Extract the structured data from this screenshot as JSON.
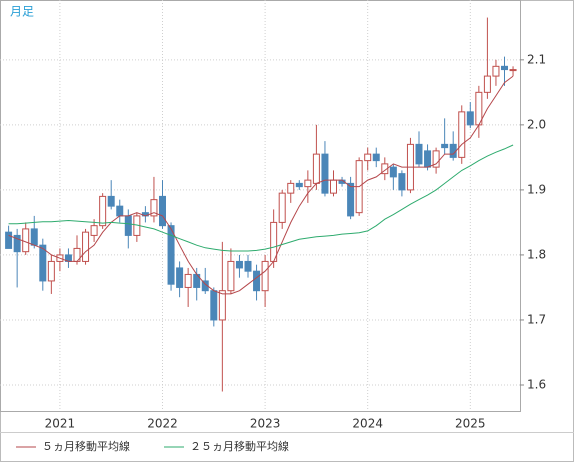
{
  "chart_data": {
    "type": "candlestick",
    "corner_label": "月足",
    "categories": [
      null,
      null,
      null,
      null,
      null,
      null,
      "2021",
      null,
      null,
      null,
      null,
      null,
      null,
      null,
      null,
      null,
      null,
      null,
      "2022",
      null,
      null,
      null,
      null,
      null,
      null,
      null,
      null,
      null,
      null,
      null,
      "2023",
      null,
      null,
      null,
      null,
      null,
      null,
      null,
      null,
      null,
      null,
      null,
      "2024",
      null,
      null,
      null,
      null,
      null,
      null,
      null,
      null,
      null,
      null,
      null,
      "2025",
      null,
      null,
      null,
      null,
      null
    ],
    "open": [
      1.835,
      1.83,
      1.805,
      1.84,
      1.815,
      1.76,
      1.79,
      1.8,
      1.79,
      1.79,
      1.83,
      1.845,
      1.89,
      1.875,
      1.86,
      1.83,
      1.865,
      1.86,
      1.89,
      1.845,
      1.78,
      1.75,
      1.77,
      1.76,
      1.745,
      1.7,
      1.745,
      1.79,
      1.79,
      1.775,
      1.745,
      1.79,
      1.85,
      1.895,
      1.91,
      1.905,
      1.91,
      1.955,
      1.895,
      1.915,
      1.91,
      1.865,
      1.945,
      1.955,
      1.925,
      1.935,
      1.925,
      1.9,
      1.97,
      1.96,
      1.935,
      1.97,
      1.97,
      1.95,
      2.02,
      2.0,
      2.05,
      2.075,
      2.09,
      2.085
    ],
    "high": [
      1.845,
      1.84,
      1.85,
      1.86,
      1.825,
      1.8,
      1.81,
      1.81,
      1.83,
      1.84,
      1.855,
      1.895,
      1.915,
      1.885,
      1.87,
      1.865,
      1.875,
      1.92,
      1.915,
      1.85,
      1.79,
      1.78,
      1.78,
      1.78,
      1.75,
      1.82,
      1.81,
      1.8,
      1.8,
      1.785,
      1.8,
      1.87,
      1.9,
      1.915,
      1.915,
      1.93,
      2.0,
      1.975,
      1.93,
      1.92,
      1.92,
      1.95,
      1.965,
      1.965,
      1.95,
      1.94,
      1.93,
      1.98,
      1.99,
      1.97,
      1.965,
      2.01,
      1.99,
      2.03,
      2.035,
      2.06,
      2.165,
      2.1,
      2.105,
      2.09
    ],
    "low": [
      1.81,
      1.75,
      1.8,
      1.81,
      1.745,
      1.74,
      1.775,
      1.78,
      1.785,
      1.785,
      1.82,
      1.84,
      1.87,
      1.85,
      1.81,
      1.82,
      1.85,
      1.85,
      1.84,
      1.745,
      1.735,
      1.72,
      1.73,
      1.74,
      1.69,
      1.59,
      1.74,
      1.765,
      1.765,
      1.73,
      1.72,
      1.78,
      1.84,
      1.88,
      1.9,
      1.88,
      1.9,
      1.89,
      1.89,
      1.905,
      1.855,
      1.86,
      1.93,
      1.935,
      1.915,
      1.9,
      1.89,
      1.895,
      1.935,
      1.93,
      1.925,
      1.955,
      1.945,
      1.94,
      1.995,
      1.98,
      2.04,
      2.06,
      2.06,
      2.075
    ],
    "close": [
      1.81,
      1.805,
      1.84,
      1.815,
      1.76,
      1.79,
      1.8,
      1.79,
      1.81,
      1.835,
      1.845,
      1.89,
      1.875,
      1.86,
      1.83,
      1.86,
      1.86,
      1.885,
      1.845,
      1.755,
      1.75,
      1.77,
      1.75,
      1.745,
      1.7,
      1.745,
      1.79,
      1.78,
      1.775,
      1.745,
      1.79,
      1.85,
      1.895,
      1.91,
      1.905,
      1.915,
      1.955,
      1.895,
      1.915,
      1.91,
      1.86,
      1.945,
      1.955,
      1.945,
      1.94,
      1.92,
      1.9,
      1.97,
      1.94,
      1.935,
      1.96,
      1.965,
      1.95,
      2.02,
      2.0,
      2.05,
      2.075,
      2.09,
      2.085,
      2.085
    ],
    "up_color": "#c0504d",
    "down_color": "#4a86b8",
    "series": [
      {
        "name": "５ヵ月移動平均線",
        "color": "#b5474b",
        "values": [
          1.83,
          1.825,
          1.82,
          1.815,
          1.81,
          1.8,
          1.795,
          1.79,
          1.79,
          1.805,
          1.815,
          1.835,
          1.85,
          1.86,
          1.86,
          1.865,
          1.86,
          1.865,
          1.86,
          1.84,
          1.815,
          1.79,
          1.77,
          1.755,
          1.745,
          1.74,
          1.74,
          1.745,
          1.755,
          1.765,
          1.775,
          1.79,
          1.82,
          1.85,
          1.875,
          1.895,
          1.91,
          1.915,
          1.915,
          1.915,
          1.905,
          1.905,
          1.915,
          1.92,
          1.93,
          1.94,
          1.935,
          1.935,
          1.935,
          1.935,
          1.94,
          1.955,
          1.955,
          1.97,
          1.98,
          2.0,
          2.025,
          2.045,
          2.065,
          2.075
        ]
      },
      {
        "name": "２５ヵ月移動平均線",
        "color": "#2eab6e",
        "values": [
          1.848,
          1.848,
          1.849,
          1.85,
          1.851,
          1.851,
          1.852,
          1.853,
          1.852,
          1.851,
          1.85,
          1.849,
          1.85,
          1.849,
          1.848,
          1.846,
          1.843,
          1.84,
          1.835,
          1.83,
          1.825,
          1.82,
          1.815,
          1.811,
          1.809,
          1.807,
          1.806,
          1.806,
          1.806,
          1.807,
          1.809,
          1.812,
          1.816,
          1.82,
          1.824,
          1.826,
          1.828,
          1.829,
          1.83,
          1.832,
          1.833,
          1.834,
          1.837,
          1.845,
          1.855,
          1.862,
          1.87,
          1.878,
          1.885,
          1.892,
          1.9,
          1.91,
          1.92,
          1.93,
          1.937,
          1.945,
          1.952,
          1.958,
          1.963,
          1.969
        ]
      }
    ],
    "ylim": [
      1.56,
      2.192
    ],
    "yticks": [
      1.6,
      1.7,
      1.8,
      1.9,
      {
        "value": 2,
        "label": "2.0"
      },
      2.1
    ],
    "grid": true
  }
}
